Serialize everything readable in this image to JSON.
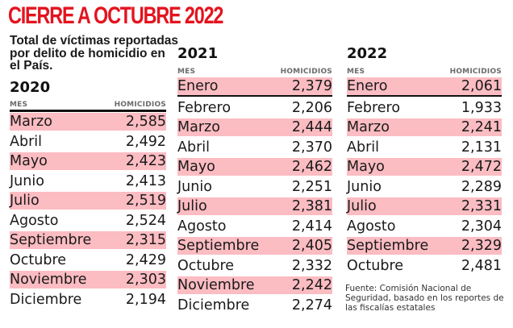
{
  "title": "CIERRE A OCTUBRE 2022",
  "subtitle": "Total de víctimas reportadas por delito de homicidio en el País.",
  "colors": {
    "title": "#e3141f",
    "highlight_row": "#fbbcc2",
    "header_text": "#6b6b6b"
  },
  "column_headers": {
    "month": "MES",
    "value": "HOMICIDIOS"
  },
  "tables": [
    {
      "year": "2020",
      "rows": [
        {
          "month": "Marzo",
          "value": "2,585"
        },
        {
          "month": "Abril",
          "value": "2,492"
        },
        {
          "month": "Mayo",
          "value": "2,423"
        },
        {
          "month": "Junio",
          "value": "2,413"
        },
        {
          "month": "Julio",
          "value": "2,519"
        },
        {
          "month": "Agosto",
          "value": "2,524"
        },
        {
          "month": "Septiembre",
          "value": "2,315"
        },
        {
          "month": "Octubre",
          "value": "2,429"
        },
        {
          "month": "Noviembre",
          "value": "2,303"
        },
        {
          "month": "Diciembre",
          "value": "2,194"
        }
      ]
    },
    {
      "year": "2021",
      "rows": [
        {
          "month": "Enero",
          "value": "2,379"
        },
        {
          "month": "Febrero",
          "value": "2,206"
        },
        {
          "month": "Marzo",
          "value": "2,444"
        },
        {
          "month": "Abril",
          "value": "2,370"
        },
        {
          "month": "Mayo",
          "value": "2,462"
        },
        {
          "month": "Junio",
          "value": "2,251"
        },
        {
          "month": "Julio",
          "value": "2,381"
        },
        {
          "month": "Agosto",
          "value": "2,414"
        },
        {
          "month": "Septiembre",
          "value": "2,405"
        },
        {
          "month": "Octubre",
          "value": "2,332"
        },
        {
          "month": "Noviembre",
          "value": "2,242"
        },
        {
          "month": "Diciembre",
          "value": "2,274"
        }
      ]
    },
    {
      "year": "2022",
      "rows": [
        {
          "month": "Enero",
          "value": "2,061"
        },
        {
          "month": "Febrero",
          "value": "1,933"
        },
        {
          "month": "Marzo",
          "value": "2,241"
        },
        {
          "month": "Abril",
          "value": "2,131"
        },
        {
          "month": "Mayo",
          "value": "2,472"
        },
        {
          "month": "Junio",
          "value": "2,289"
        },
        {
          "month": "Julio",
          "value": "2,331"
        },
        {
          "month": "Agosto",
          "value": "2,304"
        },
        {
          "month": "Septiembre",
          "value": "2,329"
        },
        {
          "month": "Octubre",
          "value": "2,481"
        }
      ]
    }
  ],
  "source": "Fuente: Comisión Nacional de Seguridad, basado en los reportes de las fiscalías estatales"
}
